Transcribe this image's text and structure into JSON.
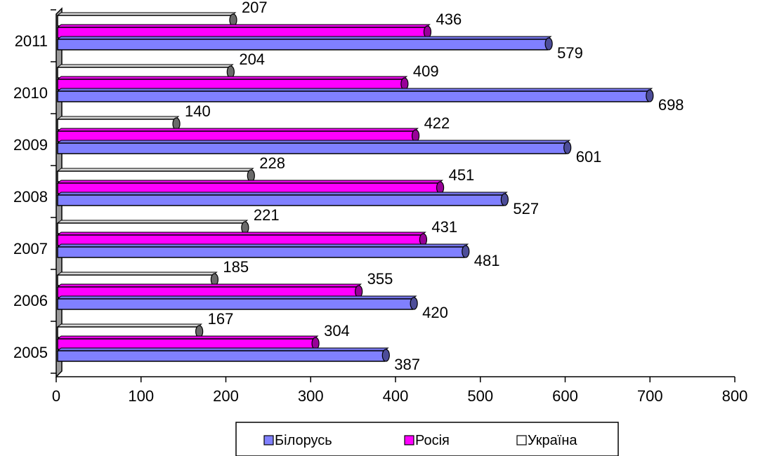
{
  "chart_data": {
    "type": "bar",
    "orientation": "horizontal",
    "style": "3d-cylinder",
    "categories": [
      "2005",
      "2006",
      "2007",
      "2008",
      "2009",
      "2010",
      "2011"
    ],
    "series": [
      {
        "name": "Білорусь",
        "color": "#8080ff",
        "values": [
          387,
          420,
          481,
          527,
          601,
          698,
          579
        ]
      },
      {
        "name": "Росія",
        "color": "#ff00ff",
        "values": [
          304,
          355,
          431,
          451,
          422,
          409,
          436
        ]
      },
      {
        "name": "Україна",
        "color": "#ffffff",
        "values": [
          167,
          185,
          221,
          228,
          140,
          204,
          207
        ]
      }
    ],
    "xlim": [
      0,
      800
    ],
    "xticks": [
      0,
      100,
      200,
      300,
      400,
      500,
      600,
      700,
      800
    ],
    "title": "",
    "xlabel": "",
    "ylabel": "",
    "grid": false,
    "legend_position": "bottom"
  }
}
